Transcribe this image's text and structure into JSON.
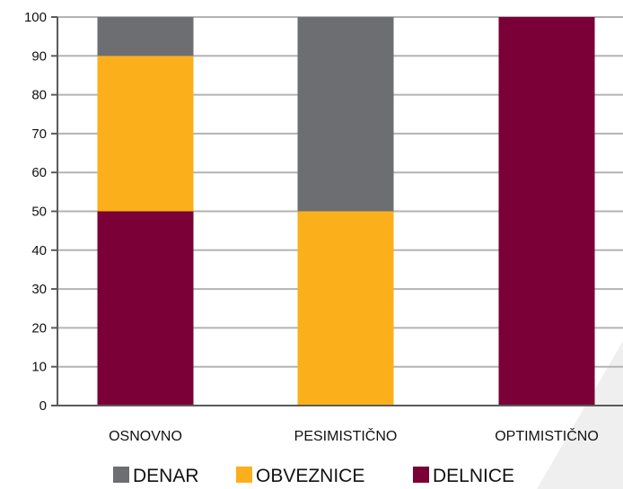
{
  "chart_data": {
    "type": "bar",
    "stacked": true,
    "categories": [
      "OSNOVNO",
      "PESIMISTIČNO",
      "OPTIMISTIČNO"
    ],
    "series": [
      {
        "name": "DELNICE",
        "color": "#7a0037",
        "values": [
          50,
          0,
          100
        ]
      },
      {
        "name": "OBVEZNICE",
        "color": "#fbb01b",
        "values": [
          40,
          50,
          0
        ]
      },
      {
        "name": "DENAR",
        "color": "#6d6e71",
        "values": [
          10,
          50,
          0
        ]
      }
    ],
    "legend_order": [
      "DENAR",
      "OBVEZNICE",
      "DELNICE"
    ],
    "legend_position": "bottom",
    "ylim": [
      0,
      100
    ],
    "yticks": [
      "0",
      "10",
      "20",
      "30",
      "40",
      "50",
      "60",
      "70",
      "80",
      "90",
      "100"
    ],
    "grid": true,
    "title": "",
    "xlabel": "",
    "ylabel": ""
  }
}
